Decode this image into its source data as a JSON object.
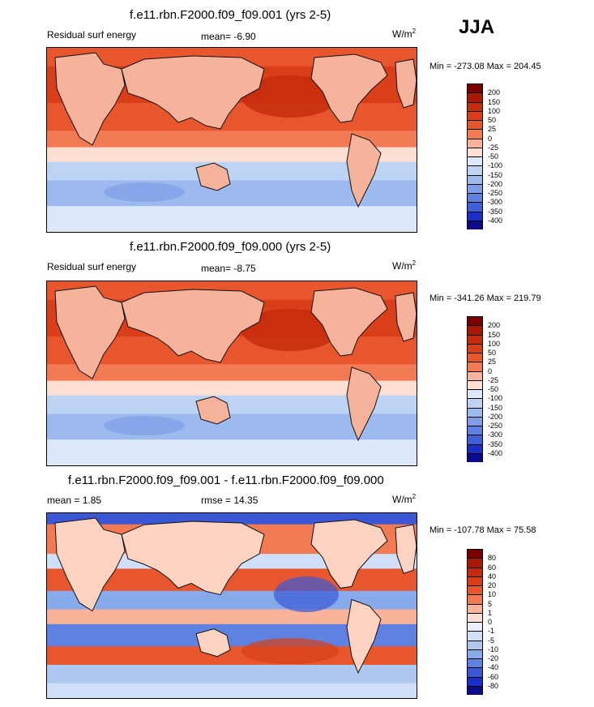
{
  "season": "JJA",
  "colors": {
    "land": "#f4b39a",
    "coast": "#111111",
    "warm": [
      "#7a0000",
      "#b41b05",
      "#d63513",
      "#e8532a",
      "#f17a52",
      "#f7a383",
      "#fbd3c0"
    ],
    "cold": [
      "#e4eefb",
      "#c7dcf6",
      "#a6c4ef",
      "#86aaea",
      "#6a90e6",
      "#4f76e0",
      "#3b5cd9",
      "#2a3fcf",
      "#1b1fb9",
      "#0a087f"
    ]
  },
  "chart_data": [
    {
      "type": "heatmap",
      "title": "f.e11.rbn.F2000.f09_f09.001 (yrs 2-5)",
      "variable": "Residual surf energy",
      "mean_label": "mean=  -6.90",
      "units": "W/m",
      "units_exp": "2",
      "minmax": "Min = -273.08 Max = 204.45",
      "colorbar_levels": [
        "200",
        "150",
        "100",
        "50",
        "25",
        "0",
        "-25",
        "-50",
        "-100",
        "-150",
        "-200",
        "-250",
        "-300",
        "-350",
        "-400"
      ],
      "colorbar_colors": [
        "#7a0000",
        "#a81804",
        "#c42a0c",
        "#d93e18",
        "#e8562e",
        "#f17a52",
        "#f9b39a",
        "#fde0d3",
        "#dde9fa",
        "#bdd3f4",
        "#9dbaee",
        "#7e9fe8",
        "#5f82e2",
        "#3f5fd9",
        "#1b2fc8",
        "#0a0a8a"
      ],
      "mean": -6.9,
      "min": -273.08,
      "max": 204.45
    },
    {
      "type": "heatmap",
      "title": "f.e11.rbn.F2000.f09_f09.000 (yrs 2-5)",
      "variable": "Residual surf energy",
      "mean_label": "mean=  -8.75",
      "units": "W/m",
      "units_exp": "2",
      "minmax": "Min = -341.26 Max = 219.79",
      "colorbar_levels": [
        "200",
        "150",
        "100",
        "50",
        "25",
        "0",
        "-25",
        "-50",
        "-100",
        "-150",
        "-200",
        "-250",
        "-300",
        "-350",
        "-400"
      ],
      "colorbar_colors": [
        "#7a0000",
        "#a81804",
        "#c42a0c",
        "#d93e18",
        "#e8562e",
        "#f17a52",
        "#f9b39a",
        "#fde0d3",
        "#dde9fa",
        "#bdd3f4",
        "#9dbaee",
        "#7e9fe8",
        "#5f82e2",
        "#3f5fd9",
        "#1b2fc8",
        "#0a0a8a"
      ],
      "mean": -8.75,
      "min": -341.26,
      "max": 219.79
    },
    {
      "type": "heatmap",
      "title": "f.e11.rbn.F2000.f09_f09.001 - f.e11.rbn.F2000.f09_f09.000",
      "mean_label": "mean =   1.85",
      "rmse_label": "rmse =  14.35",
      "units": "W/m",
      "units_exp": "2",
      "minmax": "Min = -107.78 Max =  75.58",
      "colorbar_levels": [
        "80",
        "60",
        "40",
        "20",
        "10",
        "5",
        "1",
        "0",
        "-1",
        "-5",
        "-10",
        "-20",
        "-40",
        "-60",
        "-80"
      ],
      "colorbar_colors": [
        "#7a0000",
        "#a81804",
        "#c42a0c",
        "#d93e18",
        "#e8562e",
        "#f17a52",
        "#f9b39a",
        "#fde0d3",
        "#e9f0fb",
        "#cfdff7",
        "#aec8f0",
        "#86aaea",
        "#5f82e2",
        "#3a58d6",
        "#1b2fc8",
        "#0a0a8a"
      ],
      "mean": 1.85,
      "rmse": 14.35,
      "min": -107.78,
      "max": 75.58
    }
  ]
}
